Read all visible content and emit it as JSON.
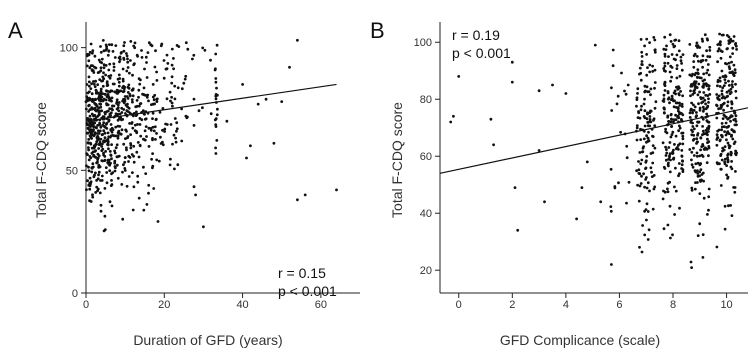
{
  "chart_data": [
    {
      "type": "scatter",
      "panel": "A",
      "xlabel": "Duration of GFD (years)",
      "ylabel": "Total F-CDQ score",
      "xlim": [
        0,
        70
      ],
      "ylim": [
        0,
        108
      ],
      "x_ticks": [
        0,
        20,
        40,
        60
      ],
      "y_ticks": [
        0,
        50,
        100
      ],
      "stats": [
        "r = 0.15",
        "p < 0.001"
      ],
      "trendline": {
        "x": [
          0,
          64
        ],
        "y": [
          70,
          85
        ]
      },
      "points": {
        "n": 800,
        "seed": 7,
        "outliers": [
          [
            64,
            42
          ],
          [
            56,
            40
          ],
          [
            54,
            38
          ],
          [
            52,
            92
          ],
          [
            54,
            103
          ],
          [
            50,
            78
          ],
          [
            46,
            79
          ],
          [
            48,
            61
          ],
          [
            44,
            77
          ],
          [
            40,
            85
          ],
          [
            42,
            60
          ],
          [
            41,
            55
          ],
          [
            36,
            70
          ],
          [
            30,
            27
          ],
          [
            28,
            40
          ]
        ]
      }
    },
    {
      "type": "scatter",
      "panel": "B",
      "xlabel": "GFD Complicance (scale)",
      "ylabel": "Total F-CDQ score",
      "xlim": [
        -0.7,
        10.8
      ],
      "ylim": [
        12,
        105
      ],
      "x_ticks": [
        0,
        2,
        4,
        6,
        8,
        10
      ],
      "y_ticks": [
        20,
        40,
        60,
        80,
        100
      ],
      "stats": [
        "r = 0.19",
        "p < 0.001"
      ],
      "trendline": {
        "x": [
          -0.7,
          10.8
        ],
        "y": [
          54,
          77
        ]
      },
      "points": {
        "n": 800,
        "seed": 11,
        "outliers": [
          [
            -0.3,
            72
          ],
          [
            -0.2,
            74
          ],
          [
            0,
            88
          ],
          [
            2,
            86
          ],
          [
            2,
            93
          ],
          [
            2.2,
            34
          ],
          [
            2.1,
            49
          ],
          [
            1.2,
            73
          ],
          [
            1.3,
            64
          ],
          [
            3,
            83
          ],
          [
            3,
            62
          ],
          [
            3.2,
            44
          ],
          [
            3.5,
            85
          ],
          [
            4,
            82
          ],
          [
            4.4,
            38
          ],
          [
            4.8,
            58
          ],
          [
            5.1,
            99
          ],
          [
            5.7,
            22
          ],
          [
            5.3,
            44
          ],
          [
            4.6,
            49
          ]
        ]
      }
    }
  ]
}
